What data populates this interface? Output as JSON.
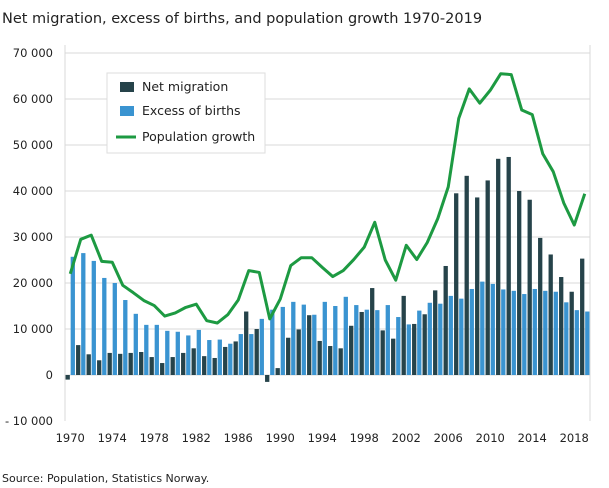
{
  "chart_data": {
    "type": "bar+line",
    "title": "Net migration, excess of births, and population growth 1970-2019",
    "source": "Source: Population,  Statistics Norway.",
    "xlabel": "",
    "ylabel": "",
    "ylim": [
      -10000,
      70000
    ],
    "yticks": [
      -10000,
      0,
      10000,
      20000,
      30000,
      40000,
      50000,
      60000,
      70000
    ],
    "ytick_labels": [
      "- 10 000",
      "0",
      "10 000",
      "20 000",
      "30 000",
      "40 000",
      "50 000",
      "60 000",
      "70 000"
    ],
    "xtick_labels": [
      "1970",
      "1974",
      "1978",
      "1982",
      "1986",
      "1990",
      "1994",
      "1998",
      "2002",
      "2006",
      "2010",
      "2014",
      "2018"
    ],
    "grid": "horizontal",
    "legend_position": "top-left",
    "years": [
      1970,
      1971,
      1972,
      1973,
      1974,
      1975,
      1976,
      1977,
      1978,
      1979,
      1980,
      1981,
      1982,
      1983,
      1984,
      1985,
      1986,
      1987,
      1988,
      1989,
      1990,
      1991,
      1992,
      1993,
      1994,
      1995,
      1996,
      1997,
      1998,
      1999,
      2000,
      2001,
      2002,
      2003,
      2004,
      2005,
      2006,
      2007,
      2008,
      2009,
      2010,
      2011,
      2012,
      2013,
      2014,
      2015,
      2016,
      2017,
      2018,
      2019
    ],
    "series": [
      {
        "name": "Net migration",
        "type": "bar",
        "color": "#26434a",
        "values": [
          -1000,
          6500,
          4500,
          3200,
          4800,
          4600,
          4800,
          5000,
          3900,
          2600,
          3900,
          4800,
          5800,
          4100,
          3700,
          6100,
          7300,
          13800,
          10000,
          -1500,
          1500,
          8100,
          9900,
          13000,
          7400,
          6300,
          5800,
          10700,
          13700,
          18900,
          9700,
          7900,
          17200,
          11100,
          13200,
          18400,
          23700,
          39500,
          43300,
          38600,
          42300,
          47000,
          47400,
          40000,
          38100,
          29800,
          26200,
          21300,
          18100,
          25300
        ]
      },
      {
        "name": "Excess of births",
        "type": "bar",
        "color": "#3a94d1",
        "values": [
          25700,
          26500,
          24800,
          21100,
          20000,
          16300,
          13300,
          10900,
          10900,
          9600,
          9400,
          8600,
          9800,
          7600,
          7700,
          6800,
          8900,
          8900,
          12200,
          14200,
          14800,
          15900,
          15300,
          13100,
          15900,
          15000,
          17000,
          15200,
          14200,
          14100,
          15200,
          12600,
          11000,
          14000,
          15700,
          15500,
          17200,
          16600,
          18700,
          20300,
          19800,
          18600,
          18300,
          17600,
          18700,
          18300,
          18100,
          15800,
          14100,
          13800
        ]
      },
      {
        "name": "Population growth",
        "type": "line",
        "color": "#1d9a42",
        "values": [
          22000,
          29500,
          30400,
          24700,
          24500,
          19500,
          17900,
          16200,
          15100,
          12800,
          13500,
          14700,
          15400,
          11800,
          11300,
          13100,
          16300,
          22700,
          22300,
          12200,
          16500,
          23800,
          25500,
          25500,
          23400,
          21400,
          22700,
          25100,
          27800,
          33200,
          25000,
          20600,
          28200,
          25100,
          28800,
          34000,
          40900,
          55800,
          62200,
          59100,
          61900,
          65500,
          65300,
          57600,
          56600,
          48100,
          44200,
          37400,
          32600,
          39400
        ]
      }
    ]
  }
}
